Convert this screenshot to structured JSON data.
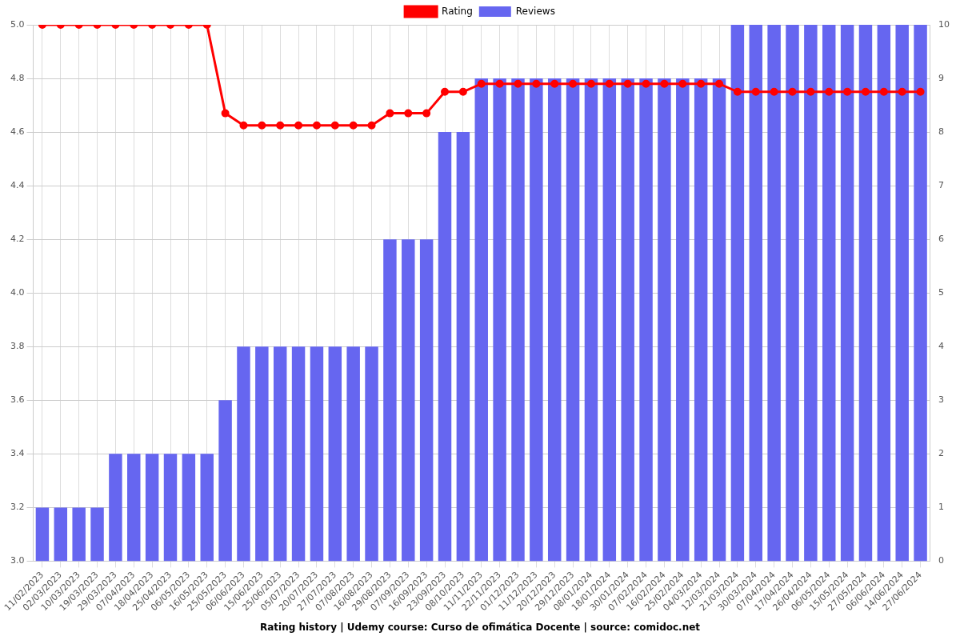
{
  "chart_data": {
    "type": "bar",
    "title": "Rating history | Udemy course: Curso de ofimática Docente | source: comidoc.net",
    "categories": [
      "11/02/2023",
      "02/03/2023",
      "10/03/2023",
      "19/03/2023",
      "29/03/2023",
      "07/04/2023",
      "18/04/2023",
      "25/04/2023",
      "06/05/2023",
      "16/05/2023",
      "25/05/2023",
      "06/06/2023",
      "15/06/2023",
      "25/06/2023",
      "05/07/2023",
      "20/07/2023",
      "27/07/2023",
      "07/08/2023",
      "16/08/2023",
      "29/08/2023",
      "07/09/2023",
      "16/09/2023",
      "23/09/2023",
      "08/10/2023",
      "11/11/2023",
      "22/11/2023",
      "01/12/2023",
      "11/12/2023",
      "20/12/2023",
      "29/12/2023",
      "08/01/2024",
      "18/01/2024",
      "30/01/2024",
      "07/02/2024",
      "16/02/2024",
      "25/02/2024",
      "04/03/2024",
      "12/03/2024",
      "21/03/2024",
      "30/03/2024",
      "07/04/2024",
      "17/04/2024",
      "26/04/2024",
      "06/05/2024",
      "15/05/2024",
      "27/05/2024",
      "06/06/2024",
      "14/06/2024",
      "27/06/2024"
    ],
    "series": [
      {
        "name": "Rating",
        "type": "line",
        "color": "#ff0000",
        "marker": "circle",
        "line_style": "solid",
        "values": [
          5.0,
          5.0,
          5.0,
          5.0,
          5.0,
          5.0,
          5.0,
          5.0,
          5.0,
          5.0,
          4.67,
          4.625,
          4.625,
          4.625,
          4.625,
          4.625,
          4.625,
          4.625,
          4.625,
          4.67,
          4.67,
          4.67,
          4.75,
          4.75,
          4.78,
          4.78,
          4.78,
          4.78,
          4.78,
          4.78,
          4.78,
          4.78,
          4.78,
          4.78,
          4.78,
          4.78,
          4.78,
          4.78,
          4.75,
          4.75,
          4.75,
          4.75,
          4.75,
          4.75,
          4.75,
          4.75,
          4.75,
          4.75,
          4.75
        ]
      },
      {
        "name": "Reviews",
        "type": "bar",
        "color": "#6666f0",
        "axis": "y2",
        "values": [
          1,
          1,
          1,
          1,
          2,
          2,
          2,
          2,
          2,
          2,
          3,
          4,
          4,
          4,
          4,
          4,
          4,
          4,
          4,
          6,
          6,
          6,
          8,
          8,
          9,
          9,
          9,
          9,
          9,
          9,
          9,
          9,
          9,
          9,
          9,
          9,
          9,
          9,
          10,
          10,
          10,
          10,
          10,
          10,
          10,
          10,
          10,
          10,
          10
        ]
      }
    ],
    "ylim": [
      3,
      5
    ],
    "yticks": [
      {
        "value": 3,
        "label": "3.0"
      },
      3.2,
      3.4,
      3.6,
      3.8,
      {
        "value": 4,
        "label": "4.0"
      },
      4.2,
      4.4,
      4.6,
      4.8,
      {
        "value": 5,
        "label": "5.0"
      }
    ],
    "y2lim": [
      0,
      10
    ],
    "y2ticks": [
      0,
      1,
      2,
      3,
      4,
      5,
      6,
      7,
      8,
      9,
      10
    ],
    "grid": true,
    "legend": "top"
  }
}
